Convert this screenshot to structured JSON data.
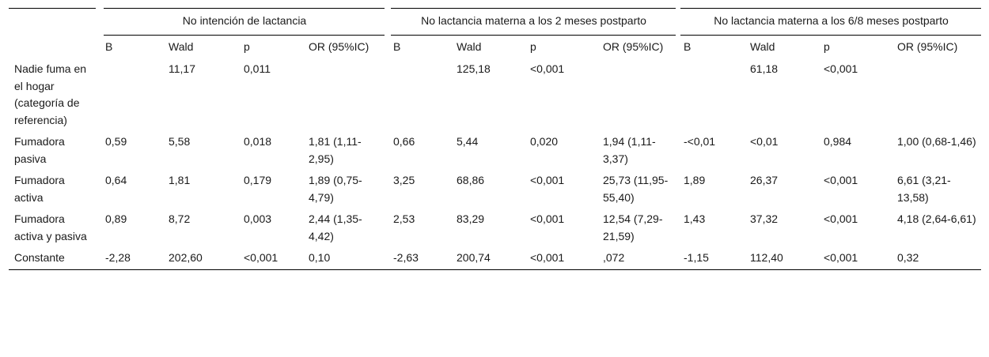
{
  "groups": [
    {
      "label": "No intención de lactancia"
    },
    {
      "label": "No lactancia materna a los 2 meses postparto"
    },
    {
      "label": "No lactancia materna a los 6/8 meses postparto"
    }
  ],
  "subheaders": [
    "B",
    "Wald",
    "p",
    "OR (95%IC)"
  ],
  "rows": [
    {
      "label": "Nadie fuma en el hogar (categoría de referencia)",
      "cells": [
        "",
        "11,17",
        "0,011",
        "",
        "",
        "125,18",
        "<0,001",
        "",
        "",
        "61,18",
        "<0,001",
        ""
      ]
    },
    {
      "label": "Fumadora pasiva",
      "cells": [
        "0,59",
        "5,58",
        "0,018",
        "1,81 (1,11-2,95)",
        "0,66",
        "5,44",
        "0,020",
        "1,94 (1,11-3,37)",
        "-<0,01",
        "<0,01",
        "0,984",
        "1,00 (0,68-1,46)"
      ]
    },
    {
      "label": "Fumadora activa",
      "cells": [
        "0,64",
        "1,81",
        "0,179",
        "1,89 (0,75-4,79)",
        "3,25",
        "68,86",
        "<0,001",
        "25,73 (11,95-55,40)",
        "1,89",
        "26,37",
        "<0,001",
        "6,61 (3,21-13,58)"
      ]
    },
    {
      "label": "Fumadora activa y pasiva",
      "cells": [
        "0,89",
        "8,72",
        "0,003",
        "2,44 (1,35-4,42)",
        "2,53",
        "83,29",
        "<0,001",
        "12,54 (7,29-21,59)",
        "1,43",
        "37,32",
        "<0,001",
        "4,18 (2,64-6,61)"
      ]
    },
    {
      "label": "Constante",
      "cells": [
        "-2,28",
        "202,60",
        "<0,001",
        "0,10",
        "-2,63",
        "200,74",
        "<0,001",
        ",072",
        "-1,15",
        "112,40",
        "<0,001",
        "0,32"
      ]
    }
  ]
}
